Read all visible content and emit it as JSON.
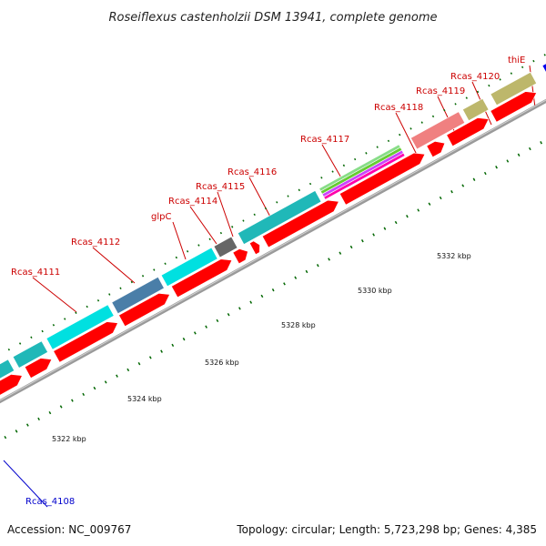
{
  "title": "Roseiflexus castenholzii DSM 13941, complete genome",
  "footer": {
    "accession": "Accession: NC_009767",
    "summary": "Topology: circular; Length: 5,723,298 bp; Genes: 4,385"
  },
  "colors": {
    "cds": "#ff0000",
    "cog_cyan": "#00e0e0",
    "cog_teal": "#20b8b8",
    "cog_steel": "#4a7ea8",
    "cog_gray": "#666666",
    "cog_pink": "#f08080",
    "cog_olive": "#bdb76b",
    "cog_blue": "#0000ee",
    "backbone": "#888888",
    "tick": "#006600",
    "label_red": "#cc0000",
    "label_blue": "#0000cc"
  },
  "gene_labels": [
    {
      "id": "rcas4108",
      "text": "Rcas_4108",
      "color": "blue"
    },
    {
      "id": "rcas4111",
      "text": "Rcas_4111",
      "color": "red"
    },
    {
      "id": "rcas4112",
      "text": "Rcas_4112",
      "color": "red"
    },
    {
      "id": "glpc",
      "text": "glpC",
      "color": "red"
    },
    {
      "id": "rcas4114",
      "text": "Rcas_4114",
      "color": "red"
    },
    {
      "id": "rcas4115",
      "text": "Rcas_4115",
      "color": "red"
    },
    {
      "id": "rcas4116",
      "text": "Rcas_4116",
      "color": "red"
    },
    {
      "id": "rcas4117",
      "text": "Rcas_4117",
      "color": "red"
    },
    {
      "id": "rcas4118",
      "text": "Rcas_4118",
      "color": "red"
    },
    {
      "id": "rcas4119",
      "text": "Rcas_4119",
      "color": "red"
    },
    {
      "id": "rcas4120",
      "text": "Rcas_4120",
      "color": "red"
    },
    {
      "id": "thie",
      "text": "thiE",
      "color": "red"
    }
  ],
  "scale_labels": [
    "5322 kbp",
    "5324 kbp",
    "5326 kbp",
    "5328 kbp",
    "5330 kbp",
    "5332 kbp"
  ]
}
